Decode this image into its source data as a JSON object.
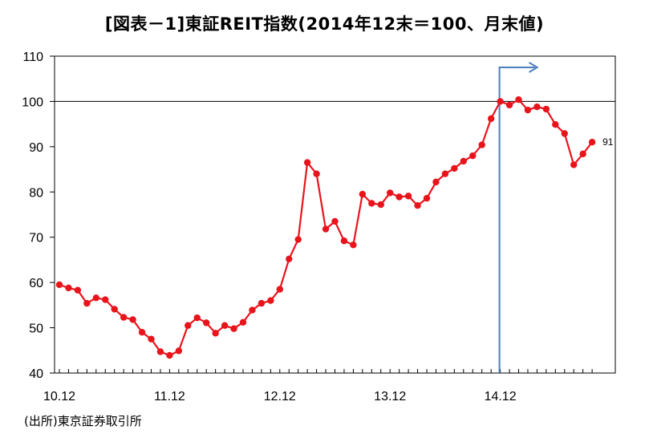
{
  "title": "[図表－1]東証REIT指数(2014年12末＝100、月末値)",
  "source": "(出所)東京証券取引所",
  "colors": {
    "series": "#e8141c",
    "marker_line": "#4a7ebb",
    "reference": "#000000",
    "frame": "#000000"
  },
  "chart_data": {
    "type": "line",
    "title": "[図表－1]東証REIT指数(2014年12末＝100、月末値)",
    "xlabel": "",
    "ylabel": "",
    "ylim": [
      40,
      110
    ],
    "yticks": [
      "40",
      "50",
      "60",
      "70",
      "80",
      "90",
      "100",
      "110"
    ],
    "xtick_labels": [
      {
        "label": "10.12",
        "index": 0
      },
      {
        "label": "11.12",
        "index": 12
      },
      {
        "label": "12.12",
        "index": 24
      },
      {
        "label": "13.12",
        "index": 36
      },
      {
        "label": "14.12",
        "index": 48
      }
    ],
    "grid": false,
    "reference_line": 100,
    "vertical_marker_index": 48,
    "end_label": "91",
    "series": [
      {
        "values": [
          59.5,
          58.8,
          58.3,
          55.4,
          56.6,
          56.2,
          54.1,
          52.3,
          51.8,
          49.0,
          47.5,
          44.7,
          43.9,
          44.9,
          50.5,
          52.2,
          51.1,
          48.8,
          50.5,
          49.8,
          51.2,
          53.9,
          55.4,
          56.0,
          58.5,
          65.2,
          69.5,
          86.5,
          84.0,
          71.8,
          73.5,
          69.2,
          68.3,
          79.5,
          77.5,
          77.2,
          79.8,
          78.9,
          79.1,
          77.0,
          78.6,
          82.2,
          84.0,
          85.2,
          86.8,
          88.0,
          90.4,
          96.2,
          100.0,
          99.2,
          100.4,
          98.1,
          98.8,
          98.3,
          94.9,
          92.9,
          86.0,
          88.4,
          91.0
        ]
      }
    ]
  }
}
